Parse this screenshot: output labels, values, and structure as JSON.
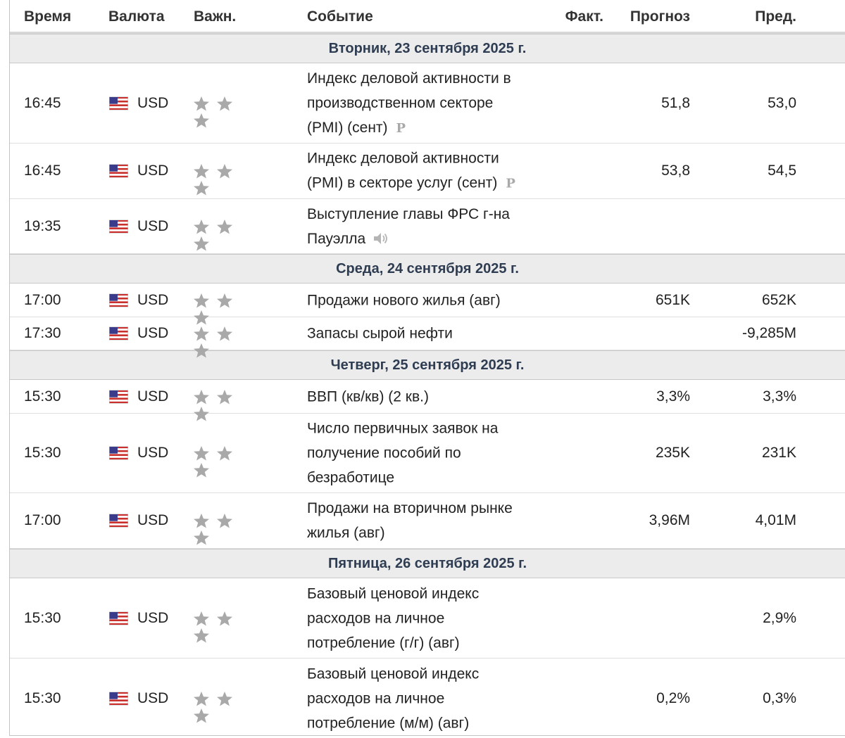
{
  "header": {
    "time": "Время",
    "currency": "Валюта",
    "importance": "Важн.",
    "event": "Событие",
    "actual": "Факт.",
    "forecast": "Прогноз",
    "previous": "Пред."
  },
  "days": [
    {
      "label": "Вторник, 23 сентября 2025 г."
    },
    {
      "label": "Среда, 24 сентября 2025 г."
    },
    {
      "label": "Четверг, 25 сентября 2025 г."
    },
    {
      "label": "Пятница, 26 сентября 2025 г."
    }
  ],
  "events": [
    {
      "time": "16:45",
      "currency": "USD",
      "importance": 3,
      "lines": [
        "Индекс деловой активности в",
        "производственном секторе",
        "(PMI) (сент)"
      ],
      "badge": "P",
      "actual": "",
      "forecast": "51,8",
      "previous": "53,0"
    },
    {
      "time": "16:45",
      "currency": "USD",
      "importance": 3,
      "lines": [
        "Индекс деловой активности",
        "(PMI) в секторе услуг (сент)"
      ],
      "badge": "P",
      "actual": "",
      "forecast": "53,8",
      "previous": "54,5"
    },
    {
      "time": "19:35",
      "currency": "USD",
      "importance": 3,
      "lines": [
        "Выступление главы ФРС г-на",
        "Пауэлла"
      ],
      "icon": "speaker-icon",
      "actual": "",
      "forecast": "",
      "previous": ""
    },
    {
      "time": "17:00",
      "currency": "USD",
      "importance": 3,
      "lines": [
        "Продажи нового жилья (авг)"
      ],
      "actual": "",
      "forecast": "651K",
      "previous": "652K"
    },
    {
      "time": "17:30",
      "currency": "USD",
      "importance": 3,
      "lines": [
        "Запасы сырой нефти"
      ],
      "actual": "",
      "forecast": "",
      "previous": "-9,285M"
    },
    {
      "time": "15:30",
      "currency": "USD",
      "importance": 3,
      "lines": [
        "ВВП (кв/кв) (2 кв.)"
      ],
      "actual": "",
      "forecast": "3,3%",
      "previous": "3,3%"
    },
    {
      "time": "15:30",
      "currency": "USD",
      "importance": 3,
      "lines": [
        "Число первичных заявок на",
        "получение пособий по",
        "безработице"
      ],
      "actual": "",
      "forecast": "235K",
      "previous": "231K"
    },
    {
      "time": "17:00",
      "currency": "USD",
      "importance": 3,
      "lines": [
        "Продажи на вторичном рынке",
        "жилья (авг)"
      ],
      "actual": "",
      "forecast": "3,96M",
      "previous": "4,01M"
    },
    {
      "time": "15:30",
      "currency": "USD",
      "importance": 3,
      "lines": [
        "Базовый ценовой индекс",
        "расходов на личное",
        "потребление (г/г) (авг)"
      ],
      "actual": "",
      "forecast": "",
      "previous": "2,9%"
    },
    {
      "time": "15:30",
      "currency": "USD",
      "importance": 3,
      "lines": [
        "Базовый ценовой индекс",
        "расходов на личное",
        "потребление (м/м) (авг)"
      ],
      "actual": "",
      "forecast": "0,2%",
      "previous": "0,3%"
    }
  ],
  "colors": {
    "star": "#a9a9a9",
    "day_band": "#ececec",
    "day_text": "#2f3d52",
    "flag_red": "#c8312e",
    "flag_blue": "#3b3b8c"
  }
}
